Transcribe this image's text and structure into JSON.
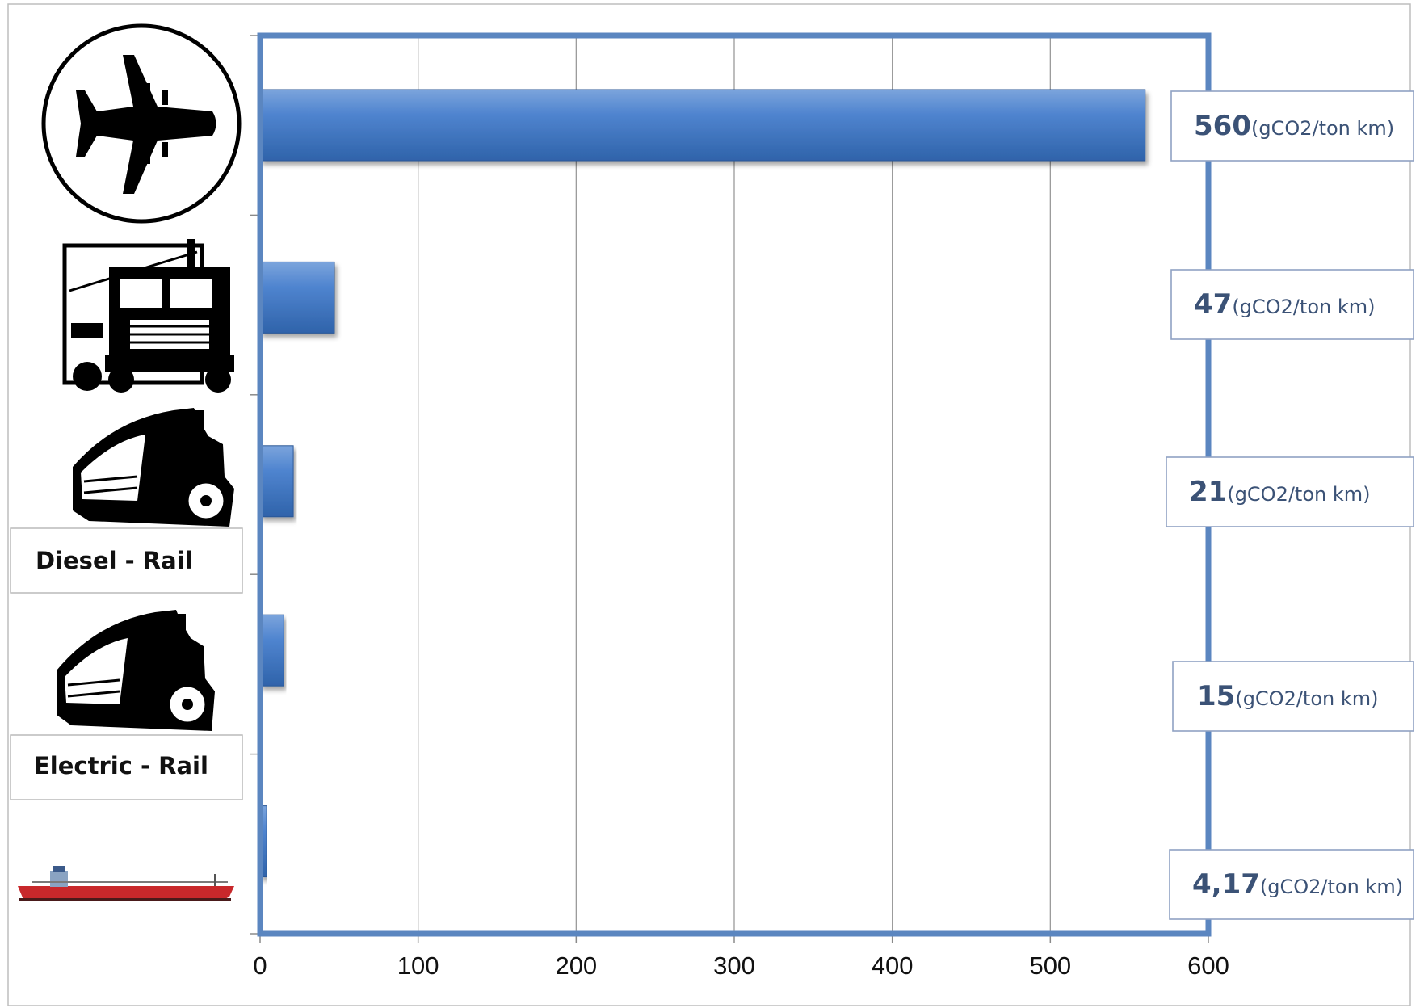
{
  "chart_data": {
    "type": "bar",
    "orientation": "horizontal",
    "categories": [
      "",
      "",
      "Diesel - Rail",
      "Electric - Rail",
      ""
    ],
    "icons": [
      "airplane-icon",
      "truck-icon",
      "diesel-locomotive-icon",
      "electric-locomotive-icon",
      "cargo-ship-icon"
    ],
    "values": [
      560,
      47,
      21,
      15,
      4.17
    ],
    "value_labels": [
      "560",
      "47",
      "21",
      "15",
      "4,17"
    ],
    "unit": "(gCO2/ton km)",
    "xlim": [
      0,
      600
    ],
    "xticks": [
      0,
      100,
      200,
      300,
      400,
      500,
      600
    ],
    "grid": "vertical",
    "bar_color": "#4a7fc9",
    "frame_color": "#5b86c0",
    "ship_hull_color": "#c8282b"
  }
}
